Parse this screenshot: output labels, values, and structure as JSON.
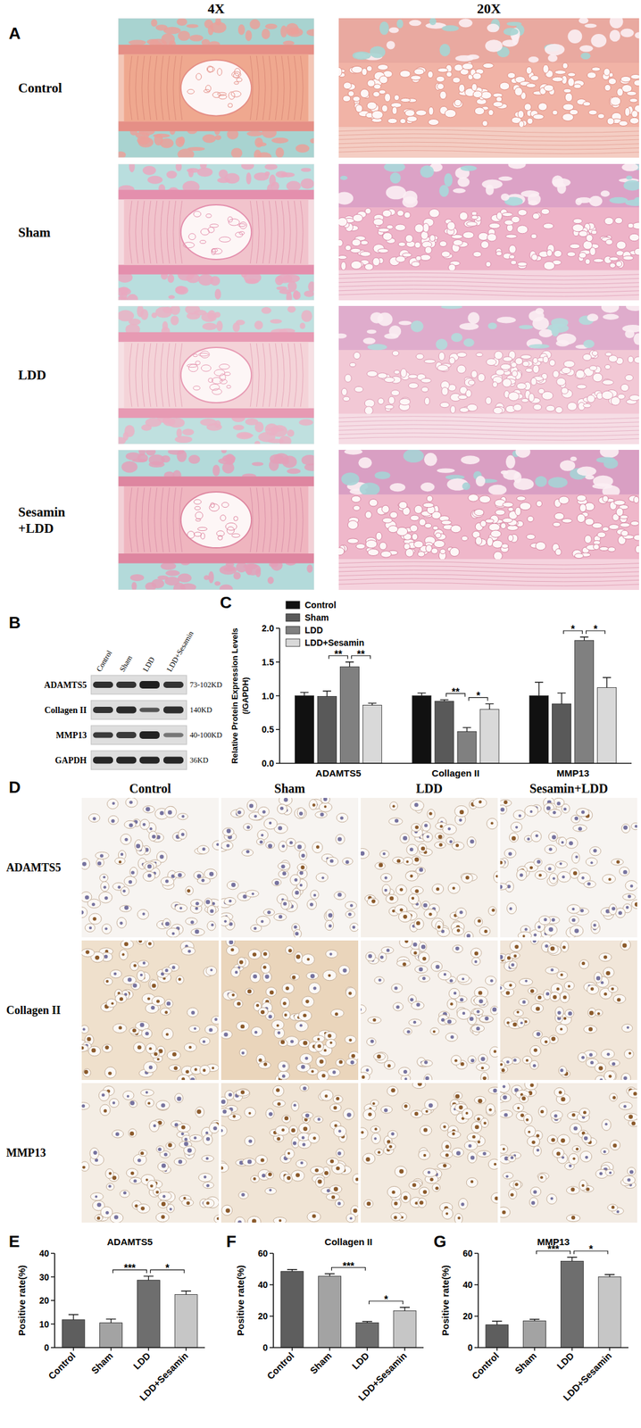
{
  "chart_data": [
    {
      "type": "bar",
      "y_label": "Relative Protein Expression Levels\n(/GAPDH)",
      "categories": [
        "ADAMTS5",
        "Collagen II",
        "MMP13"
      ],
      "series": [
        {
          "name": "Control",
          "color": "#111111",
          "values": [
            1.0,
            1.0,
            1.0
          ],
          "errors": [
            0.05,
            0.04,
            0.2
          ]
        },
        {
          "name": "Sham",
          "color": "#595959",
          "values": [
            0.99,
            0.92,
            0.88
          ],
          "errors": [
            0.08,
            0.02,
            0.16
          ]
        },
        {
          "name": "LDD",
          "color": "#808080",
          "values": [
            1.43,
            0.47,
            1.82
          ],
          "errors": [
            0.07,
            0.06,
            0.05
          ]
        },
        {
          "name": "LDD+Sesamin",
          "color": "#d9d9d9",
          "values": [
            0.86,
            0.8,
            1.12
          ],
          "errors": [
            0.03,
            0.08,
            0.15
          ]
        }
      ],
      "ylim": [
        0,
        2.0
      ],
      "yticks": [
        {
          "value": 0,
          "label": "0.0"
        },
        {
          "value": 0.5,
          "label": "0.5"
        },
        {
          "value": 1,
          "label": "1.0"
        },
        {
          "value": 1.5,
          "label": "1.5"
        },
        {
          "value": 2,
          "label": "2.0"
        }
      ],
      "legend": "top-left",
      "annotations": [
        {
          "category": "ADAMTS5",
          "between": [
            "Sham",
            "LDD"
          ],
          "label": "**"
        },
        {
          "category": "ADAMTS5",
          "between": [
            "LDD",
            "LDD+Sesamin"
          ],
          "label": "**"
        },
        {
          "category": "Collagen II",
          "between": [
            "Sham",
            "LDD"
          ],
          "label": "**"
        },
        {
          "category": "Collagen II",
          "between": [
            "LDD",
            "LDD+Sesamin"
          ],
          "label": "*"
        },
        {
          "category": "MMP13",
          "between": [
            "Sham",
            "LDD"
          ],
          "label": "*"
        },
        {
          "category": "MMP13",
          "between": [
            "LDD",
            "LDD+Sesamin"
          ],
          "label": "*"
        }
      ]
    },
    {
      "type": "bar",
      "title": "ADAMTS5",
      "y_label": "Positive rate(%)",
      "categories": [
        "Control",
        "Sham",
        "LDD",
        "LDD+Sesamin"
      ],
      "values": [
        11.8,
        10.5,
        28.6,
        22.5
      ],
      "errors": [
        2.2,
        1.6,
        1.7,
        1.5
      ],
      "colors": [
        "#5e5e5e",
        "#a3a3a3",
        "#6e6e6e",
        "#c6c6c6"
      ],
      "ylim": [
        0,
        40
      ],
      "yticks": [
        0,
        10,
        20,
        30,
        40
      ],
      "annotations": [
        {
          "between": [
            "Sham",
            "LDD"
          ],
          "label": "***"
        },
        {
          "between": [
            "LDD",
            "LDD+Sesamin"
          ],
          "label": "*"
        }
      ]
    },
    {
      "type": "bar",
      "title": "Collagen II",
      "y_label": "Positive rate(%)",
      "categories": [
        "Control",
        "Sham",
        "LDD",
        "LDD+Sesamin"
      ],
      "values": [
        48.5,
        45.5,
        15.8,
        23.4
      ],
      "errors": [
        1.2,
        1.5,
        0.8,
        2.2
      ],
      "colors": [
        "#5e5e5e",
        "#a3a3a3",
        "#6e6e6e",
        "#c6c6c6"
      ],
      "ylim": [
        0,
        60
      ],
      "yticks": [
        0,
        20,
        40,
        60
      ],
      "annotations": [
        {
          "between": [
            "Sham",
            "LDD"
          ],
          "label": "***"
        },
        {
          "between": [
            "LDD",
            "LDD+Sesamin"
          ],
          "label": "*"
        }
      ]
    },
    {
      "type": "bar",
      "title": "MMP13",
      "y_label": "Positive rate(%)",
      "categories": [
        "Control",
        "Sham",
        "LDD",
        "LDD+Sesamin"
      ],
      "values": [
        14.5,
        17.0,
        55.0,
        45.0
      ],
      "errors": [
        2.3,
        1.0,
        2.5,
        1.5
      ],
      "colors": [
        "#5e5e5e",
        "#a3a3a3",
        "#6e6e6e",
        "#c6c6c6"
      ],
      "ylim": [
        0,
        60
      ],
      "yticks": [
        0,
        20,
        40,
        60
      ],
      "annotations": [
        {
          "between": [
            "Sham",
            "LDD"
          ],
          "label": "***"
        },
        {
          "between": [
            "LDD",
            "LDD+Sesamin"
          ],
          "label": "*"
        }
      ]
    }
  ],
  "panel_labels": [
    "A",
    "B",
    "C",
    "D",
    "E",
    "F",
    "G"
  ],
  "histology": {
    "magnifications": [
      "4X",
      "20X"
    ],
    "groups": [
      [
        "Control"
      ],
      [
        "Sham"
      ],
      [
        "LDD"
      ],
      [
        "Sesamin",
        "+LDD"
      ]
    ]
  },
  "western_blot": {
    "lanes": [
      "Control",
      "Sham",
      "LDD",
      "LDD+Sesamin"
    ],
    "proteins": [
      {
        "name": "ADAMTS5",
        "mw": "73-102KD"
      },
      {
        "name": "Collagen II",
        "mw": "140KD"
      },
      {
        "name": "MMP13",
        "mw": "40-100KD"
      },
      {
        "name": "GAPDH",
        "mw": "36KD"
      }
    ]
  },
  "ihc": {
    "groups": [
      "Control",
      "Sham",
      "LDD",
      "Sesamin+LDD"
    ],
    "markers": [
      "ADAMTS5",
      "Collagen II",
      "MMP13"
    ]
  }
}
